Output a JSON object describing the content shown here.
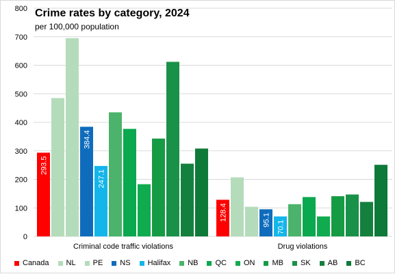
{
  "chart_data": {
    "type": "bar",
    "title": "Crime rates by category, 2024",
    "subtitle": "per 100,000 population",
    "categories": [
      "Criminal code traffic violations",
      "Drug violations"
    ],
    "ylim": [
      0,
      800
    ],
    "yticks": [
      0,
      100,
      200,
      300,
      400,
      500,
      600,
      700,
      800
    ],
    "grid": true,
    "legend_position": "bottom",
    "series": [
      {
        "name": "Canada",
        "color": "#ff0000",
        "values": [
          293.5,
          128.4
        ],
        "labels": [
          "293.5",
          "128.4"
        ]
      },
      {
        "name": "NL",
        "color": "#b4dcbb",
        "values": [
          485,
          207
        ],
        "labels": [
          "",
          ""
        ]
      },
      {
        "name": "PE",
        "color": "#b4dcbb",
        "values": [
          695,
          104
        ],
        "labels": [
          "",
          ""
        ]
      },
      {
        "name": "NS",
        "color": "#0f6cbd",
        "values": [
          384.4,
          95.1
        ],
        "labels": [
          "384.4",
          "95.1"
        ]
      },
      {
        "name": "Halifax",
        "color": "#13b5ea",
        "values": [
          247.1,
          70.1
        ],
        "labels": [
          "247.1",
          "70.1"
        ]
      },
      {
        "name": "NB",
        "color": "#4bb36b",
        "values": [
          435,
          113
        ],
        "labels": [
          "",
          ""
        ]
      },
      {
        "name": "QC",
        "color": "#0aa84f",
        "values": [
          377,
          138
        ],
        "labels": [
          "",
          ""
        ]
      },
      {
        "name": "ON",
        "color": "#10ab4e",
        "values": [
          183,
          70
        ],
        "labels": [
          "",
          ""
        ]
      },
      {
        "name": "MB",
        "color": "#169b45",
        "values": [
          343,
          141
        ],
        "labels": [
          "",
          ""
        ]
      },
      {
        "name": "SK",
        "color": "#1a9148",
        "values": [
          612,
          147
        ],
        "labels": [
          "",
          ""
        ]
      },
      {
        "name": "AB",
        "color": "#14803e",
        "values": [
          255,
          121
        ],
        "labels": [
          "",
          ""
        ]
      },
      {
        "name": "BC",
        "color": "#0d7a3a",
        "values": [
          308,
          251
        ],
        "labels": [
          "",
          ""
        ]
      }
    ]
  }
}
